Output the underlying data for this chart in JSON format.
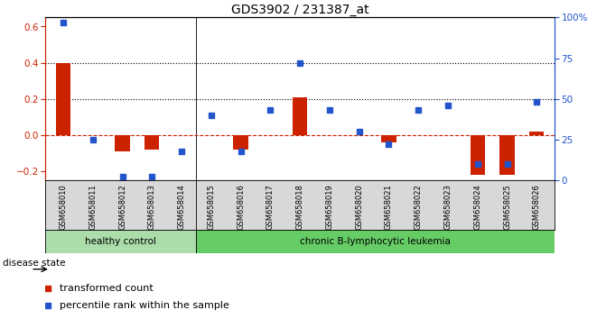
{
  "title": "GDS3902 / 231387_at",
  "samples": [
    "GSM658010",
    "GSM658011",
    "GSM658012",
    "GSM658013",
    "GSM658014",
    "GSM658015",
    "GSM658016",
    "GSM658017",
    "GSM658018",
    "GSM658019",
    "GSM658020",
    "GSM658021",
    "GSM658022",
    "GSM658023",
    "GSM658024",
    "GSM658025",
    "GSM658026"
  ],
  "red_bars": [
    0.4,
    0.0,
    -0.09,
    -0.08,
    0.0,
    0.0,
    -0.08,
    0.0,
    0.21,
    0.0,
    0.0,
    -0.04,
    0.0,
    0.0,
    -0.22,
    -0.22,
    0.02
  ],
  "blue_dots_pct": [
    97,
    25,
    2,
    2,
    18,
    40,
    18,
    43,
    72,
    43,
    30,
    22,
    43,
    46,
    10,
    10,
    48
  ],
  "healthy_count": 5,
  "left_ylim": [
    -0.25,
    0.65
  ],
  "right_ylim": [
    0,
    100
  ],
  "left_yticks": [
    -0.2,
    0.0,
    0.2,
    0.4,
    0.6
  ],
  "right_yticks": [
    0,
    25,
    50,
    75,
    100
  ],
  "right_yticklabels": [
    "0",
    "25",
    "50",
    "75",
    "100%"
  ],
  "hlines": [
    0.4,
    0.2
  ],
  "red_color": "#CC2200",
  "blue_color": "#2255CC",
  "bar_width": 0.5,
  "healthy_fill": "#AADDAA",
  "leukemia_fill": "#66CC66",
  "group_label_healthy": "healthy control",
  "group_label_leukemia": "chronic B-lymphocytic leukemia",
  "disease_state_label": "disease state",
  "legend_red": "transformed count",
  "legend_blue": "percentile rank within the sample",
  "tick_bg_color": "#D8D8D8"
}
